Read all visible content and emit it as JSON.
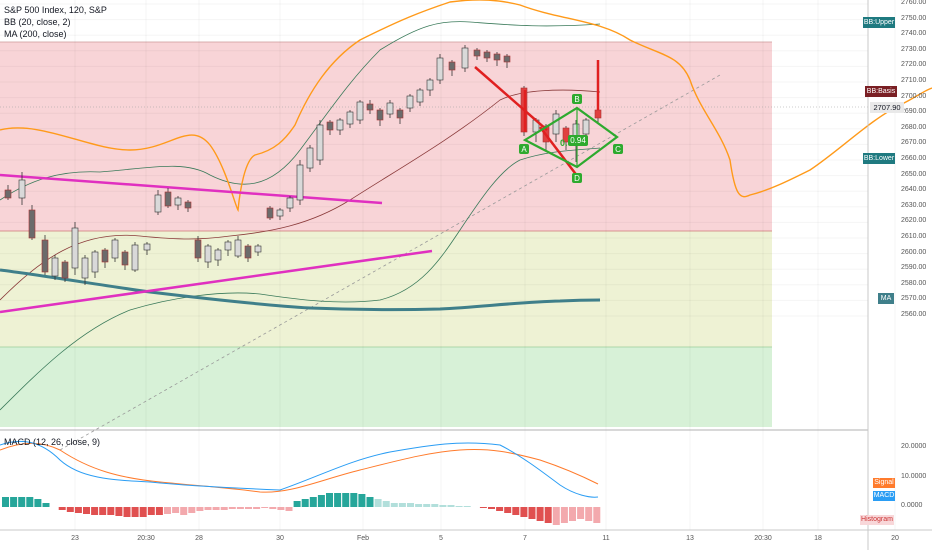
{
  "header": {
    "symbol_title": "S&P 500 Index, 120, S&P",
    "bb_label": "BB (20, close, 2)",
    "ma_label": "MA (200, close)",
    "macd_label": "MACD (12, 26, close, 9)"
  },
  "price_axis": {
    "ticks": [
      "2760.00",
      "2750.00",
      "2740.00",
      "2730.00",
      "2720.00",
      "2710.00",
      "2700.00",
      "2690.00",
      "2680.00",
      "2670.00",
      "2660.00",
      "2650.00",
      "2640.00",
      "2630.00",
      "2620.00",
      "2610.00",
      "2600.00",
      "2590.00",
      "2580.00",
      "2570.00",
      "2560.00"
    ],
    "badges": {
      "bb_upper": "BB:Upper",
      "bb_basis": "BB:Basis",
      "price": "2707.90",
      "bb_lower": "BB:Lower",
      "ma": "MA"
    }
  },
  "macd_axis": {
    "ticks": [
      "20.0000",
      "10.0000",
      "0.0000"
    ],
    "badges": {
      "signal": "Signal",
      "macd": "MACD",
      "histogram": "Histogram"
    }
  },
  "time_axis": {
    "labels": [
      "23",
      "20:30",
      "28",
      "30",
      "Feb",
      "5",
      "7",
      "11",
      "13",
      "20:30",
      "18",
      "20"
    ]
  },
  "pattern": {
    "points": [
      "A",
      "B",
      "C",
      "D"
    ],
    "ratio": "0.94",
    "ratio_prefix": "0."
  },
  "colors": {
    "up_candle": "#3d8f6a",
    "down_candle": "#e04040",
    "bb_bands": "#ff9800",
    "ma_line": "#3f7f8a",
    "magenta_trend": "#e030c0",
    "pattern_green": "#2eaa2e",
    "red_zone": "#f8c8cc",
    "yellow_zone": "#eef3d6",
    "green_zone": "#d6f2d6"
  }
}
